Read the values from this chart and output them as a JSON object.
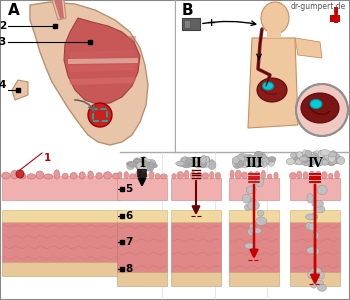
{
  "watermark": "dr-gumpert.de",
  "label_A": "A",
  "label_B": "B",
  "stages": [
    "I",
    "II",
    "III",
    "IV"
  ],
  "bg_color": "#f0f0ec",
  "border_color": "#aaaaaa",
  "stomach_outer": "#e8c5a8",
  "stomach_inner": "#c85050",
  "layer_mucosa": "#f0b8b8",
  "layer_submucosa": "#f0d8a0",
  "layer_muscularis": "#e89090",
  "layer_serosa": "#e8c8a0",
  "tumor_light": "#c8c8c8",
  "tumor_mid": "#a8a8a8",
  "tumor_dark": "#888888",
  "arrow_black": "#111111",
  "arrow_darkred": "#6b0000",
  "arrow_red": "#cc0000",
  "red_color": "#cc0000",
  "cyan_color": "#00ccdd",
  "body_skin": "#f0c8a0",
  "body_outline": "#c89060",
  "stomach_dark": "#6b1a1a",
  "gray_arrow": "#555555"
}
